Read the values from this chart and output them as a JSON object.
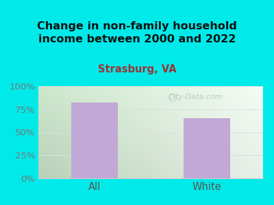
{
  "title": "Change in non-family household\nincome between 2000 and 2022",
  "subtitle": "Strasburg, VA",
  "categories": [
    "All",
    "White"
  ],
  "values": [
    82,
    65
  ],
  "bar_color": "#c2a8d5",
  "bg_color": "#00eaea",
  "plot_bg_left": "#cce8cc",
  "plot_bg_right": "#f0f8f0",
  "plot_bg_bottom": "#ffffff",
  "title_color": "#111111",
  "subtitle_color": "#993333",
  "tick_color": "#777777",
  "xtick_color": "#555555",
  "ylim": [
    0,
    100
  ],
  "yticks": [
    0,
    25,
    50,
    75,
    100
  ],
  "ytick_labels": [
    "0%",
    "25%",
    "50%",
    "75%",
    "100%"
  ],
  "title_fontsize": 11.5,
  "subtitle_fontsize": 10.5,
  "tick_fontsize": 9.5,
  "xlabel_fontsize": 10.5,
  "watermark": "City-Data.com",
  "watermark_color": "#aabbbb"
}
